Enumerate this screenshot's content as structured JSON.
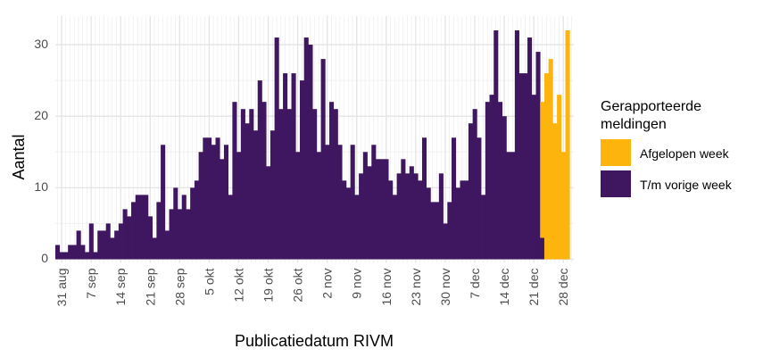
{
  "chart_data": {
    "type": "bar",
    "stacked": true,
    "title": "",
    "xlabel": "Publicatiedatum RIVM",
    "ylabel": "Aantal",
    "ylim": [
      0,
      33.5
    ],
    "y_ticks": [
      0,
      10,
      20,
      30
    ],
    "x_tick_labels": [
      {
        "label": "31 aug",
        "index": 1
      },
      {
        "label": "7 sep",
        "index": 8
      },
      {
        "label": "14 sep",
        "index": 15
      },
      {
        "label": "21 sep",
        "index": 22
      },
      {
        "label": "28 sep",
        "index": 29
      },
      {
        "label": "5 okt",
        "index": 36
      },
      {
        "label": "12 okt",
        "index": 43
      },
      {
        "label": "19 okt",
        "index": 50
      },
      {
        "label": "26 okt",
        "index": 57
      },
      {
        "label": "2 nov",
        "index": 64
      },
      {
        "label": "9 nov",
        "index": 71
      },
      {
        "label": "16 nov",
        "index": 78
      },
      {
        "label": "23 nov",
        "index": 85
      },
      {
        "label": "30 nov",
        "index": 92
      },
      {
        "label": "7 dec",
        "index": 99
      },
      {
        "label": "14 dec",
        "index": 106
      },
      {
        "label": "21 dec",
        "index": 113
      },
      {
        "label": "28 dec",
        "index": 120
      }
    ],
    "legend": {
      "title_lines": [
        "Gerapporteerde",
        "meldingen"
      ],
      "position": "right"
    },
    "series": [
      {
        "name": "T/m vorige week",
        "color": "#3f1660",
        "values": [
          2,
          1,
          1,
          2,
          2,
          4,
          2,
          1,
          5,
          1,
          4,
          4,
          5,
          3,
          4,
          5,
          7,
          6,
          8,
          9,
          9,
          9,
          6,
          3,
          8,
          16,
          4,
          7,
          10,
          7,
          9,
          7,
          10,
          11,
          15,
          17,
          17,
          16,
          17,
          14,
          16,
          9,
          22,
          15,
          21,
          19,
          21,
          18,
          25,
          22,
          13,
          18,
          31,
          21,
          26,
          21,
          26,
          15,
          25,
          31,
          30,
          21,
          15,
          28,
          16,
          22,
          21,
          16,
          11,
          10,
          16,
          9,
          12,
          15,
          13,
          16,
          14,
          14,
          14,
          11,
          9,
          12,
          14,
          12,
          13,
          12,
          11,
          17,
          10,
          8,
          8,
          12,
          5,
          8,
          17,
          10,
          11,
          11,
          19,
          21,
          17,
          9,
          22,
          23,
          32,
          22,
          20,
          15,
          15,
          32,
          26,
          26,
          31,
          23,
          29,
          3,
          0,
          0,
          0,
          0,
          0,
          0,
          0
        ],
        "prior_part_last_day": 3
      },
      {
        "name": "Afgelopen week",
        "color": "#fdb40d",
        "values": [
          0,
          0,
          0,
          0,
          0,
          0,
          0,
          0,
          0,
          0,
          0,
          0,
          0,
          0,
          0,
          0,
          0,
          0,
          0,
          0,
          0,
          0,
          0,
          0,
          0,
          0,
          0,
          0,
          0,
          0,
          0,
          0,
          0,
          0,
          0,
          0,
          0,
          0,
          0,
          0,
          0,
          0,
          0,
          0,
          0,
          0,
          0,
          0,
          0,
          0,
          0,
          0,
          0,
          0,
          0,
          0,
          0,
          0,
          0,
          0,
          0,
          0,
          0,
          0,
          0,
          0,
          0,
          0,
          0,
          0,
          0,
          0,
          0,
          0,
          0,
          0,
          0,
          0,
          0,
          0,
          0,
          0,
          0,
          0,
          0,
          0,
          0,
          0,
          0,
          0,
          0,
          0,
          0,
          0,
          0,
          0,
          0,
          0,
          0,
          0,
          0,
          0,
          0,
          0,
          0,
          0,
          0,
          0,
          0,
          0,
          0,
          0,
          0,
          0,
          0,
          19,
          26,
          28,
          19,
          23,
          15,
          32,
          0
        ]
      }
    ]
  }
}
